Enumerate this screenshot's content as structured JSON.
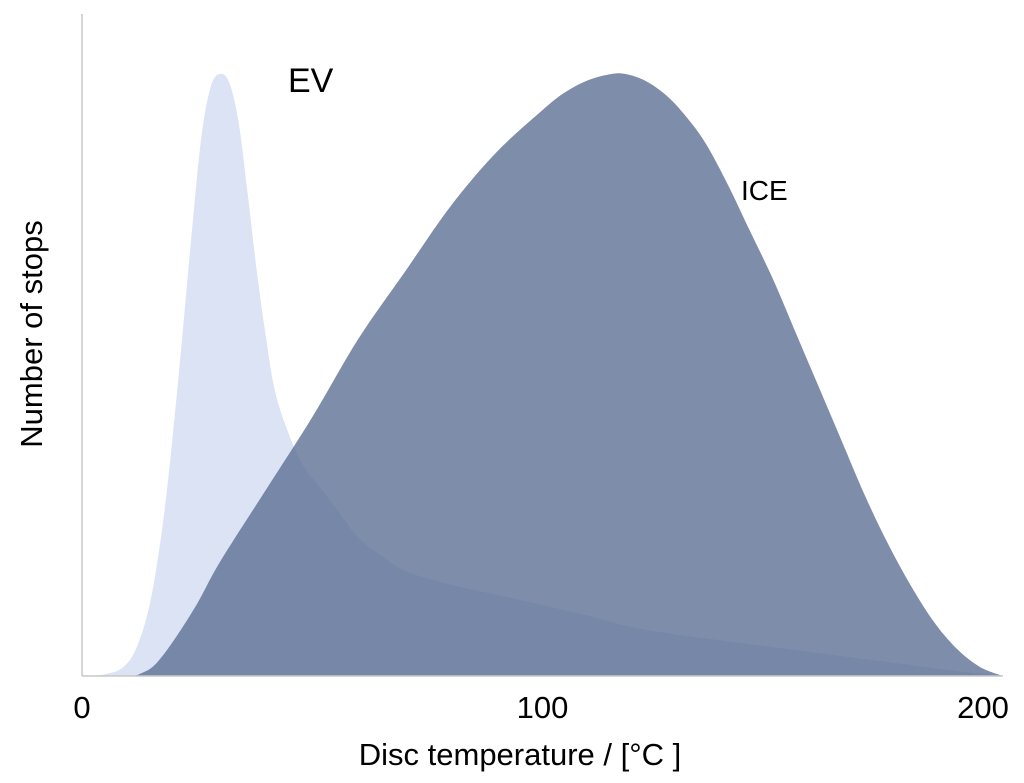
{
  "chart_data": {
    "type": "area",
    "xlabel": "Disc temperature / [°C ]",
    "ylabel": "Number of stops",
    "xlim": [
      0,
      200
    ],
    "ylim": [
      0,
      1
    ],
    "xticks": [
      "0",
      "100",
      "200"
    ],
    "grid": false,
    "legend": "none",
    "series": [
      {
        "name": "EV",
        "color": "#dbe3f4",
        "x": [
          0,
          5,
          9,
          12,
          15,
          18,
          21,
          24,
          26,
          28,
          30,
          32,
          34,
          36,
          38,
          40,
          42,
          45,
          48,
          52,
          56,
          60,
          65,
          70,
          76,
          82,
          90,
          100,
          110,
          120,
          130,
          140,
          150,
          160,
          170,
          180,
          190,
          200
        ],
        "y": [
          0,
          0.003,
          0.015,
          0.05,
          0.13,
          0.28,
          0.5,
          0.75,
          0.9,
          0.98,
          1.0,
          0.985,
          0.92,
          0.8,
          0.67,
          0.56,
          0.47,
          0.4,
          0.35,
          0.31,
          0.27,
          0.23,
          0.2,
          0.175,
          0.16,
          0.148,
          0.135,
          0.118,
          0.1,
          0.08,
          0.068,
          0.058,
          0.048,
          0.038,
          0.028,
          0.018,
          0.008,
          0
        ]
      },
      {
        "name": "ICE",
        "color": "#5a6d92",
        "x": [
          0,
          10,
          13,
          16,
          20,
          25,
          30,
          40,
          50,
          60,
          70,
          80,
          90,
          100,
          105,
          110,
          115,
          118,
          122,
          126,
          130,
          135,
          140,
          145,
          150,
          155,
          160,
          165,
          170,
          175,
          180,
          185,
          190,
          195,
          200
        ],
        "y": [
          0,
          0,
          0.005,
          0.02,
          0.06,
          0.12,
          0.19,
          0.31,
          0.43,
          0.56,
          0.67,
          0.78,
          0.87,
          0.94,
          0.97,
          0.99,
          1.0,
          1.0,
          0.99,
          0.97,
          0.94,
          0.89,
          0.82,
          0.74,
          0.66,
          0.57,
          0.48,
          0.39,
          0.3,
          0.22,
          0.15,
          0.09,
          0.045,
          0.015,
          0
        ]
      }
    ],
    "annotations": [
      "EV",
      "ICE"
    ]
  }
}
